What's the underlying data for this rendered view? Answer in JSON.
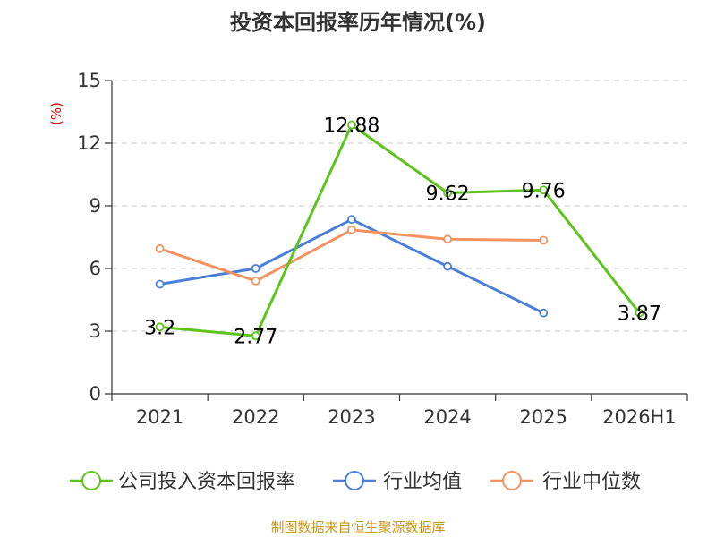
{
  "chart_data": {
    "type": "line",
    "title": "投资本回报率历年情况(%)",
    "ylabel": "(%)",
    "categories": [
      "2021",
      "2022",
      "2023",
      "2024",
      "2025",
      "2026H1"
    ],
    "ylim": [
      0,
      15
    ],
    "yticks": [
      0,
      3,
      6,
      9,
      12,
      15
    ],
    "grid": true,
    "legend_position": "bottom",
    "series": [
      {
        "name": "公司投入资本回报率",
        "color": "#5cc41a",
        "values": [
          3.2,
          2.77,
          12.88,
          9.62,
          9.76,
          3.87
        ],
        "labels": [
          "3.2",
          "2.77",
          "12.88",
          "9.62",
          "9.76",
          "3.87"
        ]
      },
      {
        "name": "行业均值",
        "color": "#4a7fd8",
        "values": [
          5.25,
          6.0,
          8.35,
          6.1,
          3.87,
          null
        ]
      },
      {
        "name": "行业中位数",
        "color": "#f59262",
        "values": [
          6.95,
          5.4,
          7.85,
          7.4,
          7.35,
          null
        ]
      }
    ]
  },
  "source": "制图数据来自恒生聚源数据库"
}
